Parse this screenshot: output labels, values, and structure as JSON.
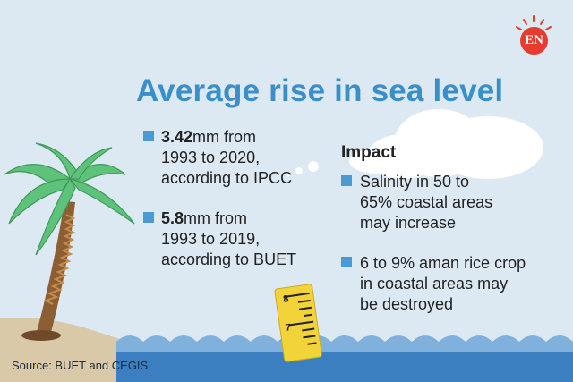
{
  "logo": {
    "text": "EN"
  },
  "title": "Average rise in sea level",
  "stats": [
    {
      "value": "3.42",
      "lines": [
        "mm from",
        "1993 to 2020,",
        "according to IPCC"
      ]
    },
    {
      "value": "5.8",
      "lines": [
        "mm from",
        "1993 to 2019,",
        "according to BUET"
      ]
    }
  ],
  "impact": {
    "heading": "Impact",
    "items": [
      {
        "lines": [
          "Salinity in 50 to",
          "65% coastal areas",
          "may increase"
        ]
      },
      {
        "lines": [
          "6 to 9% aman rice crop",
          "in coastal areas may",
          "be destroyed"
        ]
      }
    ]
  },
  "gauge": {
    "labels": [
      "8",
      "7"
    ]
  },
  "source": "Source: BUET and CEGIS",
  "colors": {
    "background": "#dde9f2",
    "title": "#3a8fc9",
    "bullet": "#4a9ad4",
    "water": "#3b7fc0",
    "sand": "#d9c9a8",
    "palm_leaf": "#5fc27a",
    "trunk": "#8b5e34",
    "gauge": "#f2d43a",
    "logo": "#e63c2f"
  }
}
